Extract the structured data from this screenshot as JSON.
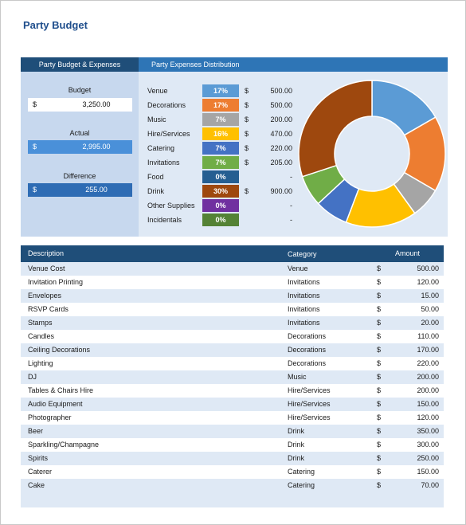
{
  "title": "Party Budget",
  "summary": {
    "header": "Party Budget & Expenses",
    "budget_label": "Budget",
    "budget_currency": "$",
    "budget_value": "3,250.00",
    "actual_label": "Actual",
    "actual_currency": "$",
    "actual_value": "2,995.00",
    "difference_label": "Difference",
    "difference_currency": "$",
    "difference_value": "255.00"
  },
  "distribution": {
    "header": "Party Expenses Distribution",
    "items": [
      {
        "name": "Venue",
        "pct": "17%",
        "currency": "$",
        "amount": "500.00",
        "color": "#5b9bd5"
      },
      {
        "name": "Decorations",
        "pct": "17%",
        "currency": "$",
        "amount": "500.00",
        "color": "#ed7d31"
      },
      {
        "name": "Music",
        "pct": "7%",
        "currency": "$",
        "amount": "200.00",
        "color": "#a5a5a5"
      },
      {
        "name": "Hire/Services",
        "pct": "16%",
        "currency": "$",
        "amount": "470.00",
        "color": "#ffc000"
      },
      {
        "name": "Catering",
        "pct": "7%",
        "currency": "$",
        "amount": "220.00",
        "color": "#4472c4"
      },
      {
        "name": "Invitations",
        "pct": "7%",
        "currency": "$",
        "amount": "205.00",
        "color": "#70ad47"
      },
      {
        "name": "Food",
        "pct": "0%",
        "currency": "",
        "amount": "-",
        "color": "#255e91"
      },
      {
        "name": "Drink",
        "pct": "30%",
        "currency": "$",
        "amount": "900.00",
        "color": "#9e480e"
      },
      {
        "name": "Other Supplies",
        "pct": "0%",
        "currency": "",
        "amount": "-",
        "color": "#7030a0"
      },
      {
        "name": "Incidentals",
        "pct": "0%",
        "currency": "",
        "amount": "-",
        "color": "#548235"
      }
    ]
  },
  "chart_data": {
    "type": "pie",
    "categories": [
      "Venue",
      "Decorations",
      "Music",
      "Hire/Services",
      "Catering",
      "Invitations",
      "Food",
      "Drink",
      "Other Supplies",
      "Incidentals"
    ],
    "values": [
      500,
      500,
      200,
      470,
      220,
      205,
      0,
      900,
      0,
      0
    ],
    "colors": [
      "#5b9bd5",
      "#ed7d31",
      "#a5a5a5",
      "#ffc000",
      "#4472c4",
      "#70ad47",
      "#255e91",
      "#9e480e",
      "#7030a0",
      "#548235"
    ],
    "style": "donut"
  },
  "table": {
    "headers": {
      "description": "Description",
      "category": "Category",
      "amount": "Amount"
    },
    "rows": [
      {
        "description": "Venue Cost",
        "category": "Venue",
        "currency": "$",
        "amount": "500.00"
      },
      {
        "description": "Invitation Printing",
        "category": "Invitations",
        "currency": "$",
        "amount": "120.00"
      },
      {
        "description": "Envelopes",
        "category": "Invitations",
        "currency": "$",
        "amount": "15.00"
      },
      {
        "description": "RSVP Cards",
        "category": "Invitations",
        "currency": "$",
        "amount": "50.00"
      },
      {
        "description": "Stamps",
        "category": "Invitations",
        "currency": "$",
        "amount": "20.00"
      },
      {
        "description": "Candles",
        "category": "Decorations",
        "currency": "$",
        "amount": "110.00"
      },
      {
        "description": "Ceiling Decorations",
        "category": "Decorations",
        "currency": "$",
        "amount": "170.00"
      },
      {
        "description": "Lighting",
        "category": "Decorations",
        "currency": "$",
        "amount": "220.00"
      },
      {
        "description": "DJ",
        "category": "Music",
        "currency": "$",
        "amount": "200.00"
      },
      {
        "description": "Tables & Chairs Hire",
        "category": "Hire/Services",
        "currency": "$",
        "amount": "200.00"
      },
      {
        "description": "Audio Equipment",
        "category": "Hire/Services",
        "currency": "$",
        "amount": "150.00"
      },
      {
        "description": "Photographer",
        "category": "Hire/Services",
        "currency": "$",
        "amount": "120.00"
      },
      {
        "description": "Beer",
        "category": "Drink",
        "currency": "$",
        "amount": "350.00"
      },
      {
        "description": "Sparkling/Champagne",
        "category": "Drink",
        "currency": "$",
        "amount": "300.00"
      },
      {
        "description": "Spirits",
        "category": "Drink",
        "currency": "$",
        "amount": "250.00"
      },
      {
        "description": "Caterer",
        "category": "Catering",
        "currency": "$",
        "amount": "150.00"
      },
      {
        "description": "Cake",
        "category": "Catering",
        "currency": "$",
        "amount": "70.00"
      }
    ]
  }
}
